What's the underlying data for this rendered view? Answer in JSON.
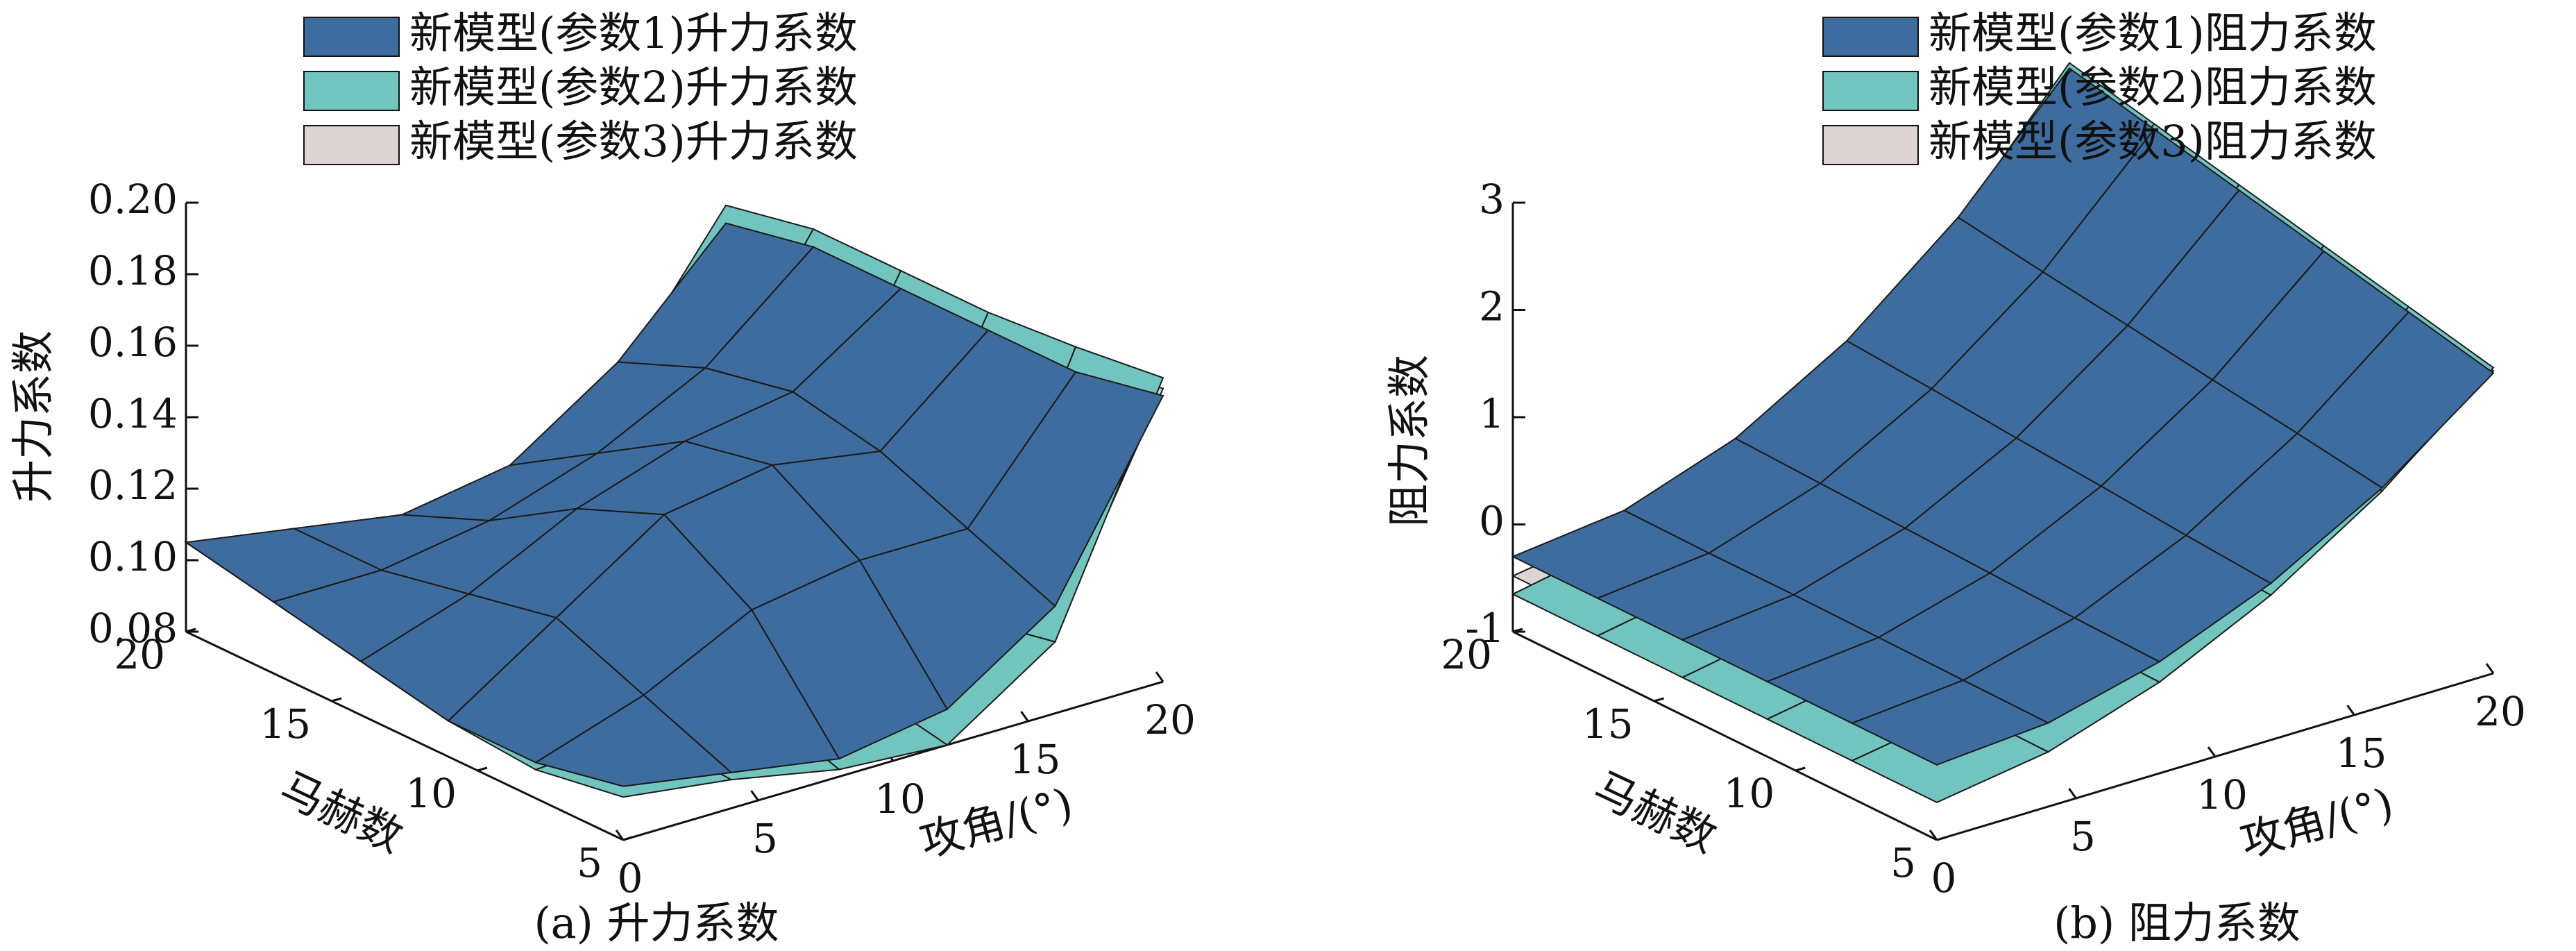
{
  "chart_data": [
    {
      "type": "surface3d",
      "caption": "(a) 升力系数",
      "zlabel": "升力系数",
      "ylabel": "马赫数",
      "xlabel": "攻角/(°)",
      "x": [
        0,
        4,
        8,
        12,
        16,
        20
      ],
      "y": [
        20,
        17,
        14,
        11,
        8,
        5
      ],
      "xlim": [
        0,
        20
      ],
      "ylim": [
        5,
        20
      ],
      "zlim": [
        0.08,
        0.2
      ],
      "xticks": [
        0,
        5,
        10,
        15,
        20
      ],
      "yticks": [
        5,
        10,
        15,
        20
      ],
      "zticks": [
        0.08,
        {
          "value": 0.1,
          "label": "0.10"
        },
        0.12,
        0.14,
        0.16,
        0.18,
        {
          "value": 0.2,
          "label": "0.20"
        }
      ],
      "series": [
        {
          "name": "新模型(参数1)升力系数",
          "color": "#3f6c9e",
          "values": [
            [
              0.105,
              0.1,
              0.095,
              0.1,
              0.12,
              0.15
            ],
            [
              0.1,
              0.1,
              0.105,
              0.115,
              0.13,
              0.155
            ],
            [
              0.095,
              0.105,
              0.12,
              0.13,
              0.135,
              0.155
            ],
            [
              0.09,
              0.11,
              0.13,
              0.135,
              0.13,
              0.155
            ],
            [
              0.09,
              0.1,
              0.115,
              0.12,
              0.12,
              0.155
            ],
            [
              0.095,
              0.09,
              0.085,
              0.09,
              0.11,
              0.16
            ]
          ]
        },
        {
          "name": "新模型(参数2)升力系数",
          "color": "#72c4bf",
          "values": [
            [
              0.105,
              0.098,
              0.092,
              0.095,
              0.115,
              0.155
            ],
            [
              0.1,
              0.095,
              0.098,
              0.1,
              0.115,
              0.16
            ],
            [
              0.095,
              0.095,
              0.1,
              0.095,
              0.105,
              0.16
            ],
            [
              0.09,
              0.092,
              0.095,
              0.09,
              0.1,
              0.16
            ],
            [
              0.088,
              0.09,
              0.09,
              0.085,
              0.095,
              0.162
            ],
            [
              0.092,
              0.088,
              0.082,
              0.08,
              0.1,
              0.165
            ]
          ]
        },
        {
          "name": "新模型(参数3)升力系数",
          "color": "#dcd5d3",
          "values": [
            [
              0.105,
              0.099,
              0.093,
              0.097,
              0.117,
              0.152
            ],
            [
              0.1,
              0.097,
              0.1,
              0.104,
              0.119,
              0.157
            ],
            [
              0.095,
              0.098,
              0.105,
              0.102,
              0.112,
              0.157
            ],
            [
              0.09,
              0.096,
              0.103,
              0.1,
              0.108,
              0.157
            ],
            [
              0.089,
              0.093,
              0.097,
              0.094,
              0.102,
              0.158
            ],
            [
              0.093,
              0.089,
              0.083,
              0.083,
              0.103,
              0.162
            ]
          ]
        }
      ]
    },
    {
      "type": "surface3d",
      "caption": "(b) 阻力系数",
      "zlabel": "阻力系数",
      "ylabel": "马赫数",
      "xlabel": "攻角/(°)",
      "x": [
        0,
        4,
        8,
        12,
        16,
        20
      ],
      "y": [
        20,
        17,
        14,
        11,
        8,
        5
      ],
      "xlim": [
        0,
        20
      ],
      "ylim": [
        5,
        20
      ],
      "zlim": [
        -1,
        3
      ],
      "xticks": [
        0,
        5,
        10,
        15,
        20
      ],
      "yticks": [
        5,
        10,
        15,
        20
      ],
      "zticks": [
        -1,
        0,
        1,
        2,
        3
      ],
      "series": [
        {
          "name": "新模型(参数1)阻力系数",
          "color": "#3f6c9e",
          "values": [
            [
              -0.3,
              -0.18,
              0.18,
              0.78,
              1.62,
              2.7
            ],
            [
              -0.3,
              -0.19,
              0.15,
              0.72,
              1.5,
              2.52
            ],
            [
              -0.3,
              -0.19,
              0.12,
              0.65,
              1.39,
              2.34
            ],
            [
              -0.3,
              -0.2,
              0.09,
              0.59,
              1.27,
              2.16
            ],
            [
              -0.3,
              -0.21,
              0.06,
              0.52,
              1.16,
              1.98
            ],
            [
              -0.3,
              -0.22,
              0.04,
              0.46,
              1.04,
              1.8
            ]
          ]
        },
        {
          "name": "新模型(参数2)阻力系数",
          "color": "#72c4bf",
          "values": [
            [
              -0.65,
              -0.45,
              -0.01,
              0.67,
              1.59,
              2.75
            ],
            [
              -0.65,
              -0.46,
              -0.04,
              0.61,
              1.47,
              2.57
            ],
            [
              -0.65,
              -0.46,
              -0.07,
              0.54,
              1.36,
              2.39
            ],
            [
              -0.65,
              -0.47,
              -0.1,
              0.48,
              1.24,
              2.21
            ],
            [
              -0.65,
              -0.48,
              -0.13,
              0.41,
              1.13,
              2.03
            ],
            [
              -0.65,
              -0.49,
              -0.15,
              0.35,
              1.01,
              1.85
            ]
          ]
        },
        {
          "name": "新模型(参数3)阻力系数",
          "color": "#dcd5d3",
          "values": [
            [
              -0.48,
              -0.32,
              0.08,
              0.72,
              1.6,
              2.72
            ],
            [
              -0.48,
              -0.33,
              0.05,
              0.66,
              1.48,
              2.54
            ],
            [
              -0.48,
              -0.33,
              0.02,
              0.59,
              1.37,
              2.36
            ],
            [
              -0.48,
              -0.34,
              -0.01,
              0.53,
              1.25,
              2.18
            ],
            [
              -0.48,
              -0.35,
              -0.04,
              0.46,
              1.14,
              2.0
            ],
            [
              -0.48,
              -0.36,
              -0.06,
              0.4,
              1.02,
              1.82
            ]
          ]
        }
      ]
    }
  ]
}
